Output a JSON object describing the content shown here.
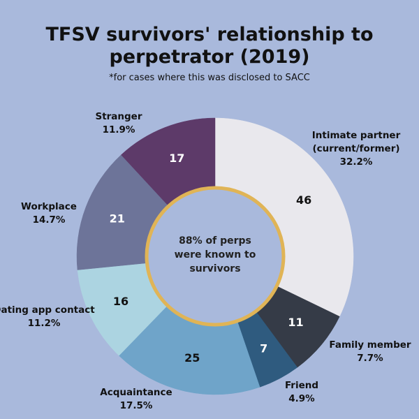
{
  "chart_data": {
    "type": "donut",
    "title": "TFSV survivors' relationship to perpetrator (2019)",
    "subtitle": "*for cases where this was disclosed to SACC",
    "center_text": "88% of perps were known to survivors",
    "categories": [
      "Intimate partner (current/former)",
      "Family member",
      "Friend",
      "Acquaintance",
      "Dating app contact",
      "Workplace",
      "Stranger"
    ],
    "values": [
      46,
      11,
      7,
      25,
      16,
      21,
      17
    ],
    "percent_labels": [
      "32.2%",
      "7.7%",
      "4.9%",
      "17.5%",
      "11.2%",
      "14.7%",
      "11.9%"
    ],
    "colors": [
      "#e9e8ed",
      "#353b47",
      "#2f5b7f",
      "#6fa4c9",
      "#acd4e1",
      "#6d7499",
      "#5d3a69"
    ]
  }
}
